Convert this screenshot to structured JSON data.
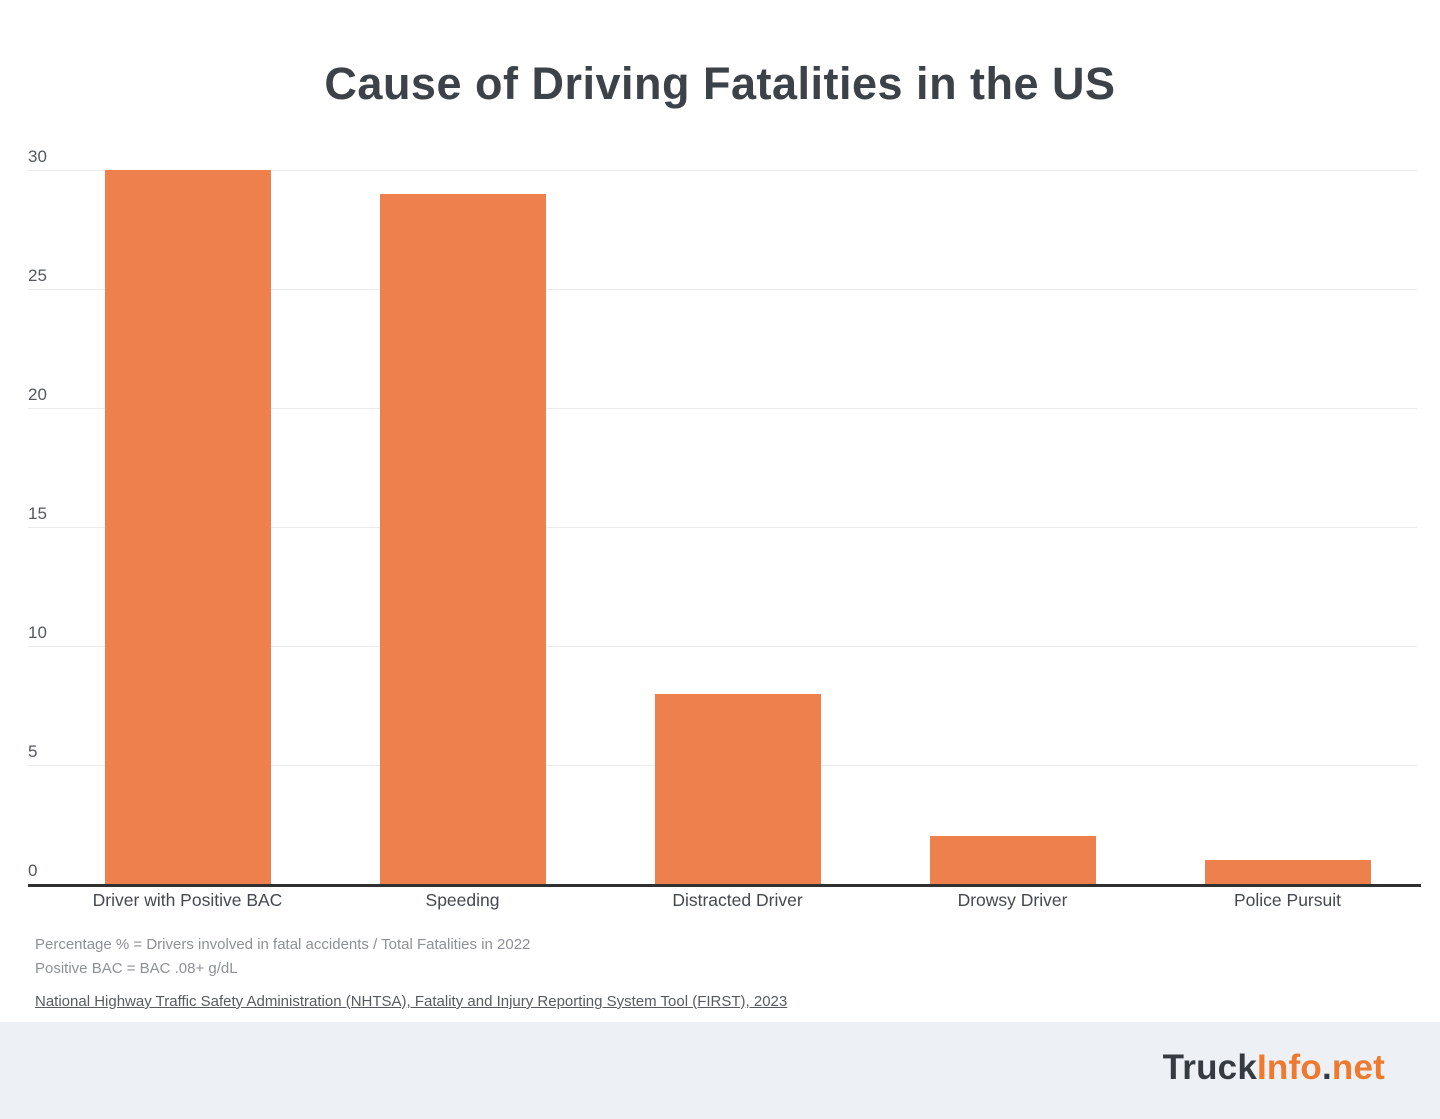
{
  "title": "Cause of Driving Fatalities in the US",
  "chart_data": {
    "type": "bar",
    "title": "Cause of Driving Fatalities in the US",
    "categories": [
      "Driver with Positive BAC",
      "Speeding",
      "Distracted Driver",
      "Drowsy Driver",
      "Police Pursuit"
    ],
    "values": [
      30,
      29,
      8,
      2,
      1
    ],
    "unit": "percent",
    "xlabel": "",
    "ylabel": "",
    "ylim": [
      0,
      30
    ],
    "yticks": [
      0,
      5,
      10,
      15,
      20,
      25,
      30
    ],
    "grid": true,
    "legend": false,
    "bar_color": "#EE804D",
    "gridline_color": "#EBEBEB",
    "axis_color": "#303030",
    "tick_color": "#55595D"
  },
  "footnotes": {
    "line1": "Percentage % = Drivers involved in fatal accidents / Total Fatalities in 2022",
    "line2": "Positive BAC = BAC .08+ g/dL"
  },
  "source": {
    "text": "National Highway Traffic Safety Administration (NHTSA), Fatality and Injury Reporting System Tool (FIRST), 2023"
  },
  "footer": {
    "background": "#EDF0F4",
    "logo": {
      "part1": "Truck",
      "part2": "Info",
      "part3": ".",
      "part4": "net",
      "dark_color": "#363B42",
      "accent_color": "#EE7A2F"
    }
  }
}
